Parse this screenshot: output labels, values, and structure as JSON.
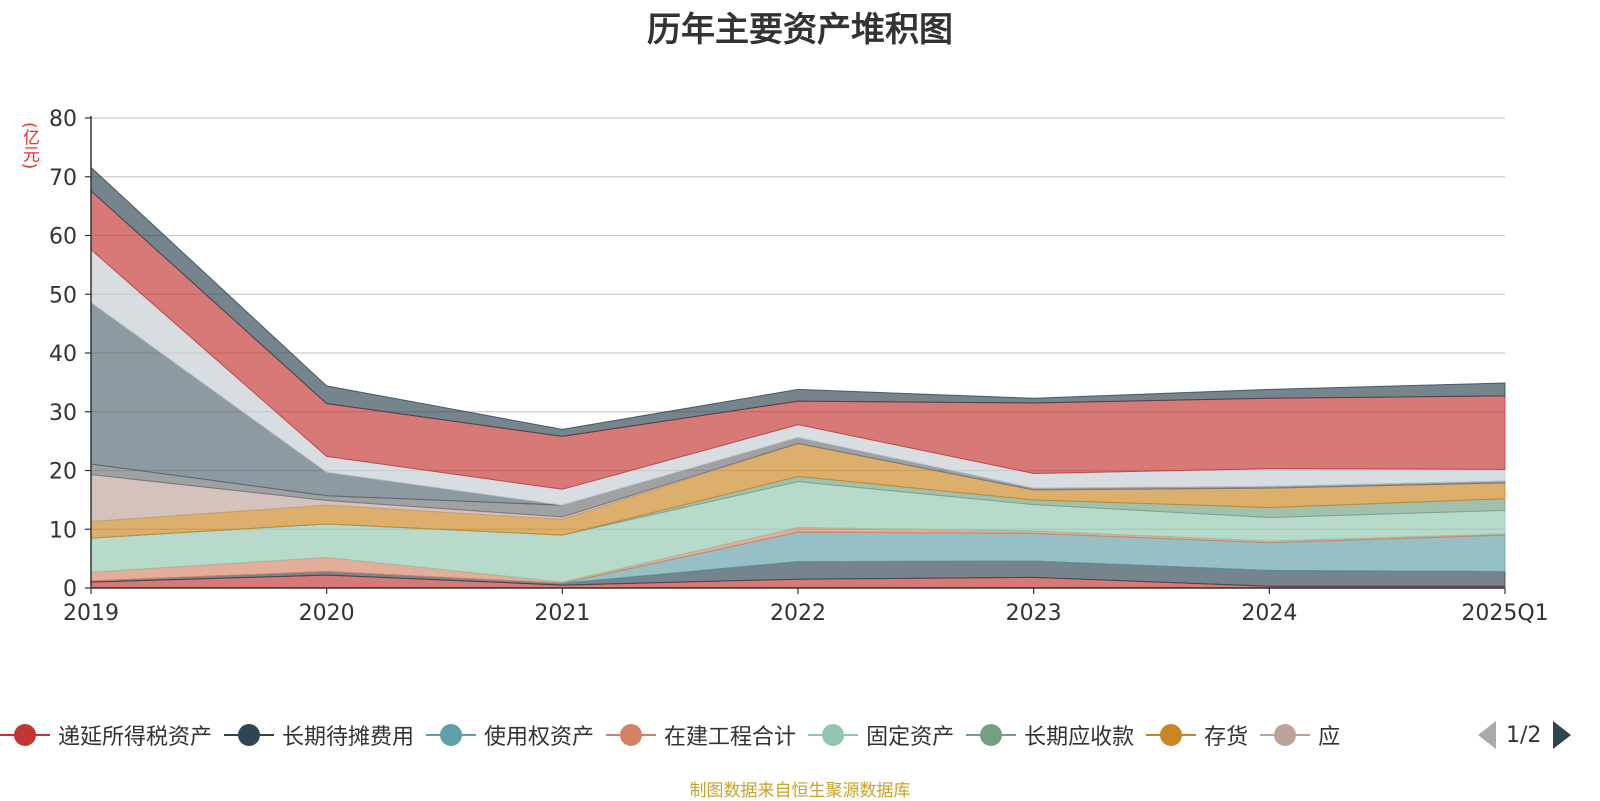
{
  "title": "历年主要资产堆积图",
  "unit_label": "(亿元)",
  "source_text": "制图数据来自恒生聚源数据库",
  "legend": {
    "items": [
      {
        "name": "递延所得税资产",
        "color": "#c23531"
      },
      {
        "name": "长期待摊费用",
        "color": "#2f4554"
      },
      {
        "name": "使用权资产",
        "color": "#61a0a8"
      },
      {
        "name": "在建工程合计",
        "color": "#d48265"
      },
      {
        "name": "固定资产",
        "color": "#91c7ae"
      },
      {
        "name": "长期应收款",
        "color": "#749f83"
      },
      {
        "name": "存货",
        "color": "#ca8622"
      },
      {
        "name": "应",
        "color": "#bda29a"
      }
    ],
    "page_indicator": "1/2"
  },
  "chart_data": {
    "type": "area",
    "stacked": true,
    "title": "历年主要资产堆积图",
    "ylabel": "(亿元)",
    "ylim": [
      0,
      80
    ],
    "yticks": [
      0,
      10,
      20,
      30,
      40,
      50,
      60,
      70,
      80
    ],
    "grid": true,
    "legend_position": "bottom",
    "categories": [
      "2019",
      "2020",
      "2021",
      "2022",
      "2023",
      "2024",
      "2025Q1"
    ],
    "series": [
      {
        "name": "递延所得税资产",
        "color": "#c23531",
        "values": [
          1.0,
          2.2,
          0.5,
          1.5,
          1.8,
          0.3,
          0.3
        ]
      },
      {
        "name": "长期待摊费用",
        "color": "#2f4554",
        "values": [
          0.2,
          0.6,
          0.3,
          3.0,
          2.8,
          2.7,
          2.5
        ]
      },
      {
        "name": "使用权资产",
        "color": "#61a0a8",
        "values": [
          0.0,
          0.0,
          0.0,
          5.0,
          4.7,
          4.7,
          6.2
        ]
      },
      {
        "name": "在建工程合计",
        "color": "#d48265",
        "values": [
          1.5,
          2.4,
          0.2,
          0.8,
          0.4,
          0.3,
          0.2
        ]
      },
      {
        "name": "固定资产",
        "color": "#91c7ae",
        "values": [
          5.8,
          5.7,
          8.0,
          7.8,
          4.5,
          4.0,
          4.0
        ]
      },
      {
        "name": "长期应收款",
        "color": "#749f83",
        "values": [
          0.0,
          0.0,
          0.0,
          0.9,
          0.8,
          1.7,
          2.0
        ]
      },
      {
        "name": "存货",
        "color": "#ca8622",
        "values": [
          2.8,
          3.2,
          2.7,
          5.6,
          1.7,
          3.3,
          2.7
        ]
      },
      {
        "name": "应",
        "color": "#bda29a",
        "values": [
          8.0,
          0.8,
          0.4,
          0.0,
          0.0,
          0.0,
          0.0
        ]
      },
      {
        "values": [
          1.8,
          0.8,
          2.0,
          1.0,
          0.3,
          0.3,
          0.3
        ],
        "color": "#6e7074"
      },
      {
        "values": [
          27.5,
          4.0,
          0.0,
          0.0,
          0.0,
          0.0,
          0.0
        ],
        "color": "#546570"
      },
      {
        "values": [
          9.0,
          2.7,
          2.7,
          2.2,
          2.5,
          3.0,
          2.0
        ],
        "color": "#c4ccd3"
      },
      {
        "values": [
          10.0,
          9.0,
          9.0,
          4.0,
          12.0,
          12.0,
          12.5
        ],
        "color": "#c23531"
      },
      {
        "values": [
          4.0,
          3.0,
          1.2,
          2.0,
          0.8,
          1.5,
          2.2
        ],
        "color": "#2f4554"
      }
    ]
  }
}
